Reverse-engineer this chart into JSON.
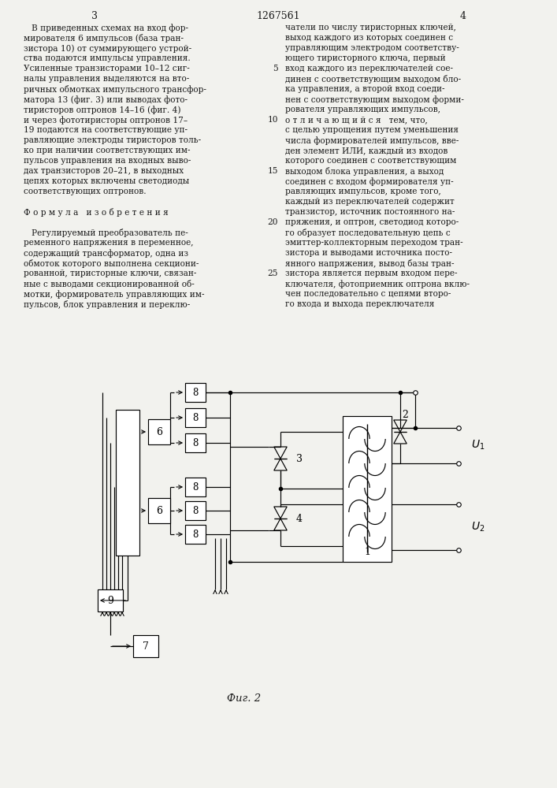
{
  "background_color": "#f2f2ee",
  "text_color": "#1a1a1a",
  "page_number_left": "3",
  "patent_number": "1267561",
  "page_number_right": "4",
  "left_col": [
    "   В приведенных схемах на вход фор-",
    "мирователя 6 импульсов (база тран-",
    "зистора 10) от суммирующего устрой-",
    "ства подаются импульсы управления.",
    "Усиленные транзисторами 10–12 сиг-",
    "налы управления выделяются на вто-",
    "ричных обмотках импульсного трансфор-",
    "матора 13 (фиг. 3) или выводах фото-",
    "тиристоров оптронов 14–16 (фиг. 4)",
    "и через фототиристоры оптронов 17–",
    "19 подаются на соответствующие уп-",
    "равляющие электроды тиристоров толь-",
    "ко при наличии соответствующих им-",
    "пульсов управления на входных выво-",
    "дах транзисторов 20–21, в выходных",
    "цепях которых включены светодиоды",
    "соответствующих оптронов.",
    "",
    "Ф о р м у л а   и з о б р е т е н и я",
    "",
    "   Регулируемый преобразователь пе-",
    "ременного напряжения в переменное,",
    "содержащий трансформатор, одна из",
    "обмоток которого выполнена секциони-",
    "рованной, тиристорные ключи, связан-",
    "ные с выводами секционированной об-",
    "мотки, формирователь управляющих им-",
    "пульсов, блок управления и переклю-"
  ],
  "right_col": [
    "чатели по числу тиристорных ключей,",
    "выход каждого из которых соединен с",
    "управляющим электродом соответству-",
    "ющего тиристорного ключа, первый",
    "вход каждого из переключателей сое-",
    "динен с соответствующим выходом бло-",
    "ка управления, а второй вход соеди-",
    "нен с соответствующим выходом форми-",
    "рователя управляющих импульсов,",
    "о т л и ч а ю щ и й с я   тем, что,",
    "с целью упрощения путем уменьшения",
    "числа формирователей импульсов, вве-",
    "ден элемент ИЛИ, каждый из входов",
    "которого соединен с соответствующим",
    "выходом блока управления, а выход",
    "соединен с входом формирователя уп-",
    "равляющих импульсов, кроме того,",
    "каждый из переключателей содержит",
    "транзистор, источник постоянного на-",
    "пряжения, и оптрон, светодиод которо-",
    "го образует последовательную цепь с",
    "эмиттер-коллекторным переходом тран-",
    "зистора и выводами источника посто-",
    "янного напряжения, вывод базы тран-",
    "зистора является первым входом пере-",
    "ключателя, фотоприемник оптрона вклю-",
    "чен последовательно с цепями второ-",
    "го входа и выхода переключателя"
  ],
  "line_numbers": [
    [
      4,
      5
    ],
    [
      9,
      10
    ],
    [
      14,
      15
    ],
    [
      19,
      20
    ],
    [
      24,
      25
    ]
  ],
  "fig_caption": "Фиг. 2"
}
